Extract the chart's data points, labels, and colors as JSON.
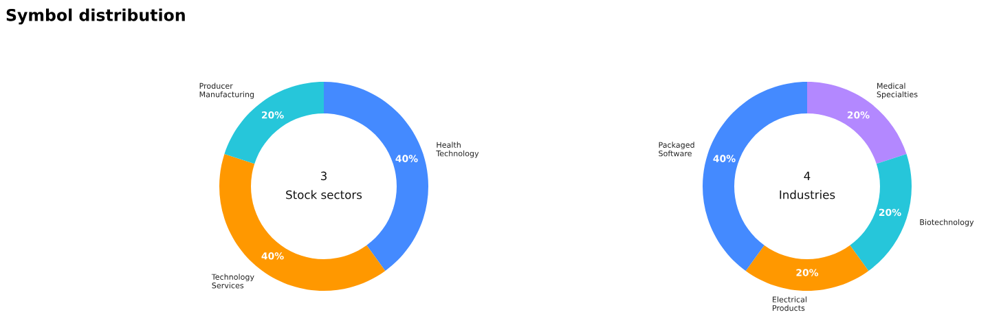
{
  "chart_data": [
    {
      "type": "donut",
      "title": "Symbol distribution",
      "categories": [
        "Health\nTechnology",
        "Technology\nServices",
        "Producer\nManufacturing"
      ],
      "values": [
        40,
        40,
        20
      ],
      "colors": [
        "#448aff",
        "#ff9800",
        "#26c6da"
      ],
      "value_labels": [
        "40%",
        "40%",
        "20%"
      ],
      "annotations": [
        "3",
        "Stock sectors"
      ]
    },
    {
      "type": "donut",
      "categories": [
        "Medical\nSpecialties",
        "Biotechnology",
        "Electrical\nProducts",
        "Packaged\nSoftware"
      ],
      "values": [
        20,
        20,
        20,
        40
      ],
      "colors": [
        "#b388ff",
        "#26c6da",
        "#ff9800",
        "#448aff"
      ],
      "value_labels": [
        "20%",
        "20%",
        "20%",
        "40%"
      ],
      "annotations": [
        "4",
        "Industries"
      ]
    }
  ]
}
